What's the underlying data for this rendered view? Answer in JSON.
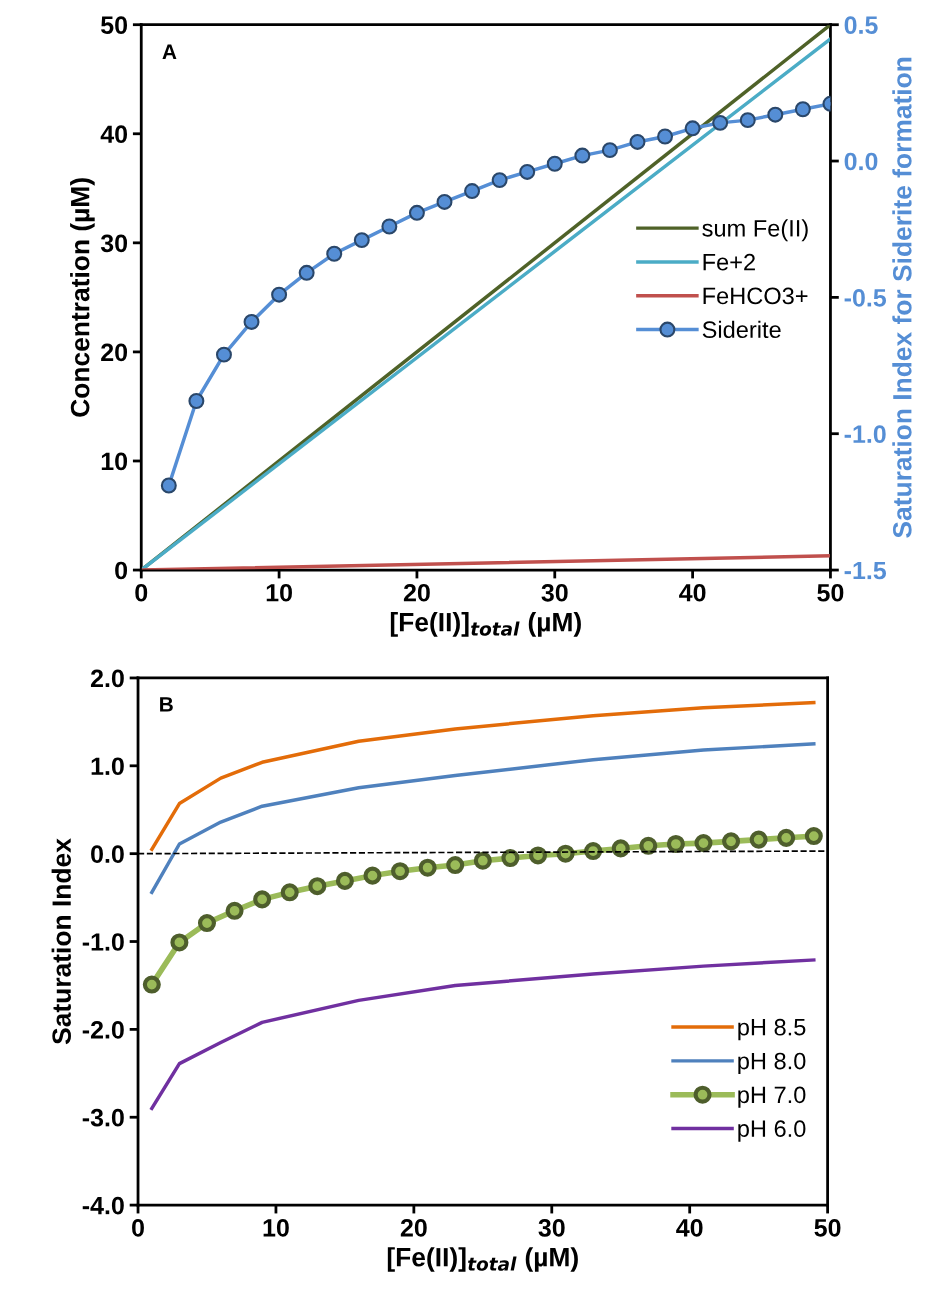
{
  "chart_data": [
    {
      "type": "line",
      "title": "A",
      "xlabel": "[Fe(II)]$_{total}$ (µM)",
      "ylabel": "Concentration (µM)",
      "y2label": "Saturation Index for Siderite formation",
      "xlim": [
        0,
        50
      ],
      "xticks": [
        0,
        10,
        20,
        30,
        40,
        50
      ],
      "ylim": [
        0,
        50
      ],
      "yticks": [
        0,
        10,
        20,
        30,
        40,
        50
      ],
      "y2lim": [
        -1.5,
        0.5
      ],
      "y2ticks": [
        {
          "value": -1.5,
          "label": "-1.5"
        },
        {
          "value": -1.0,
          "label": "-1.0"
        },
        {
          "value": -0.5,
          "label": "-0.5"
        },
        {
          "value": 0.0,
          "label": "0.0"
        },
        {
          "value": 0.5,
          "label": "0.5"
        }
      ],
      "grid": false,
      "legend": "center right",
      "series": [
        {
          "name": "sum Fe(II)",
          "color": "#4f6228",
          "x": [
            0,
            50
          ],
          "values": [
            0,
            50
          ],
          "marker": "none"
        },
        {
          "name": "Fe+2",
          "color": "#4bacc6",
          "x": [
            0,
            50
          ],
          "values": [
            0,
            48.7
          ],
          "marker": "none"
        },
        {
          "name": "FeHCO3+",
          "color": "#c0504d",
          "x": [
            0,
            50
          ],
          "values": [
            0,
            1.3
          ],
          "marker": "none"
        },
        {
          "name": "Siderite",
          "color": "#558ed5",
          "axis": "y2",
          "marker": "circle",
          "x": [
            2,
            4,
            6,
            8,
            10,
            12,
            14,
            16,
            18,
            20,
            22,
            24,
            26,
            28,
            30,
            32,
            34,
            36,
            38,
            40,
            42,
            44,
            46,
            48,
            50
          ],
          "values": [
            -1.19,
            -0.88,
            -0.71,
            -0.59,
            -0.49,
            -0.41,
            -0.34,
            -0.29,
            -0.24,
            -0.19,
            -0.15,
            -0.11,
            -0.07,
            -0.04,
            -0.01,
            0.02,
            0.04,
            0.07,
            0.09,
            0.12,
            0.14,
            0.15,
            0.17,
            0.19,
            0.21
          ]
        }
      ]
    },
    {
      "type": "line",
      "title": "B",
      "xlabel": "[Fe(II)]$_{total}$ (µM)",
      "ylabel": "Saturation Index",
      "xlim": [
        0,
        50
      ],
      "xticks": [
        0,
        10,
        20,
        30,
        40,
        50
      ],
      "ylim": [
        -4.0,
        2.0
      ],
      "yticks": [
        {
          "value": -4.0,
          "label": "-4.0"
        },
        {
          "value": -3.0,
          "label": "-3.0"
        },
        {
          "value": -2.0,
          "label": "-2.0"
        },
        {
          "value": -1.0,
          "label": "-1.0"
        },
        {
          "value": 0.0,
          "label": "0.0"
        },
        {
          "value": 1.0,
          "label": "1.0"
        },
        {
          "value": 2.0,
          "label": "2.0"
        }
      ],
      "grid": false,
      "legend": "lower right",
      "series": [
        {
          "name": "pH 8.5",
          "color": "#e36c09",
          "marker": "none",
          "x": [
            1,
            3,
            6,
            9,
            16,
            23,
            33,
            41,
            49
          ],
          "values": [
            0.05,
            0.57,
            0.86,
            1.04,
            1.28,
            1.42,
            1.57,
            1.66,
            1.72
          ]
        },
        {
          "name": "pH 8.0",
          "color": "#4f81bd",
          "marker": "none",
          "x": [
            1,
            3,
            6,
            9,
            16,
            23,
            33,
            41,
            49
          ],
          "values": [
            -0.44,
            0.11,
            0.36,
            0.54,
            0.75,
            0.89,
            1.07,
            1.18,
            1.25
          ]
        },
        {
          "name": "pH 7.0",
          "color": "#9bbb59",
          "marker": "circle",
          "x": [
            1,
            3,
            5,
            7,
            9,
            11,
            13,
            15,
            17,
            19,
            21,
            23,
            25,
            27,
            29,
            31,
            33,
            35,
            37,
            39,
            41,
            43,
            45,
            47,
            49
          ],
          "values": [
            -1.49,
            -1.01,
            -0.79,
            -0.65,
            -0.52,
            -0.44,
            -0.37,
            -0.31,
            -0.25,
            -0.2,
            -0.16,
            -0.13,
            -0.08,
            -0.05,
            -0.02,
            0.0,
            0.03,
            0.06,
            0.09,
            0.11,
            0.12,
            0.14,
            0.16,
            0.18,
            0.2
          ]
        },
        {
          "name": "pH 6.0",
          "color": "#7030a0",
          "marker": "none",
          "x": [
            1,
            3,
            6,
            9,
            16,
            23,
            33,
            41,
            49
          ],
          "values": [
            -2.9,
            -2.39,
            -2.15,
            -1.92,
            -1.67,
            -1.5,
            -1.37,
            -1.28,
            -1.21
          ]
        },
        {
          "color": "#000000",
          "marker": "none",
          "line_style": "dashed",
          "x": [
            0,
            50
          ],
          "values": [
            0.0,
            0.03
          ]
        }
      ]
    }
  ]
}
